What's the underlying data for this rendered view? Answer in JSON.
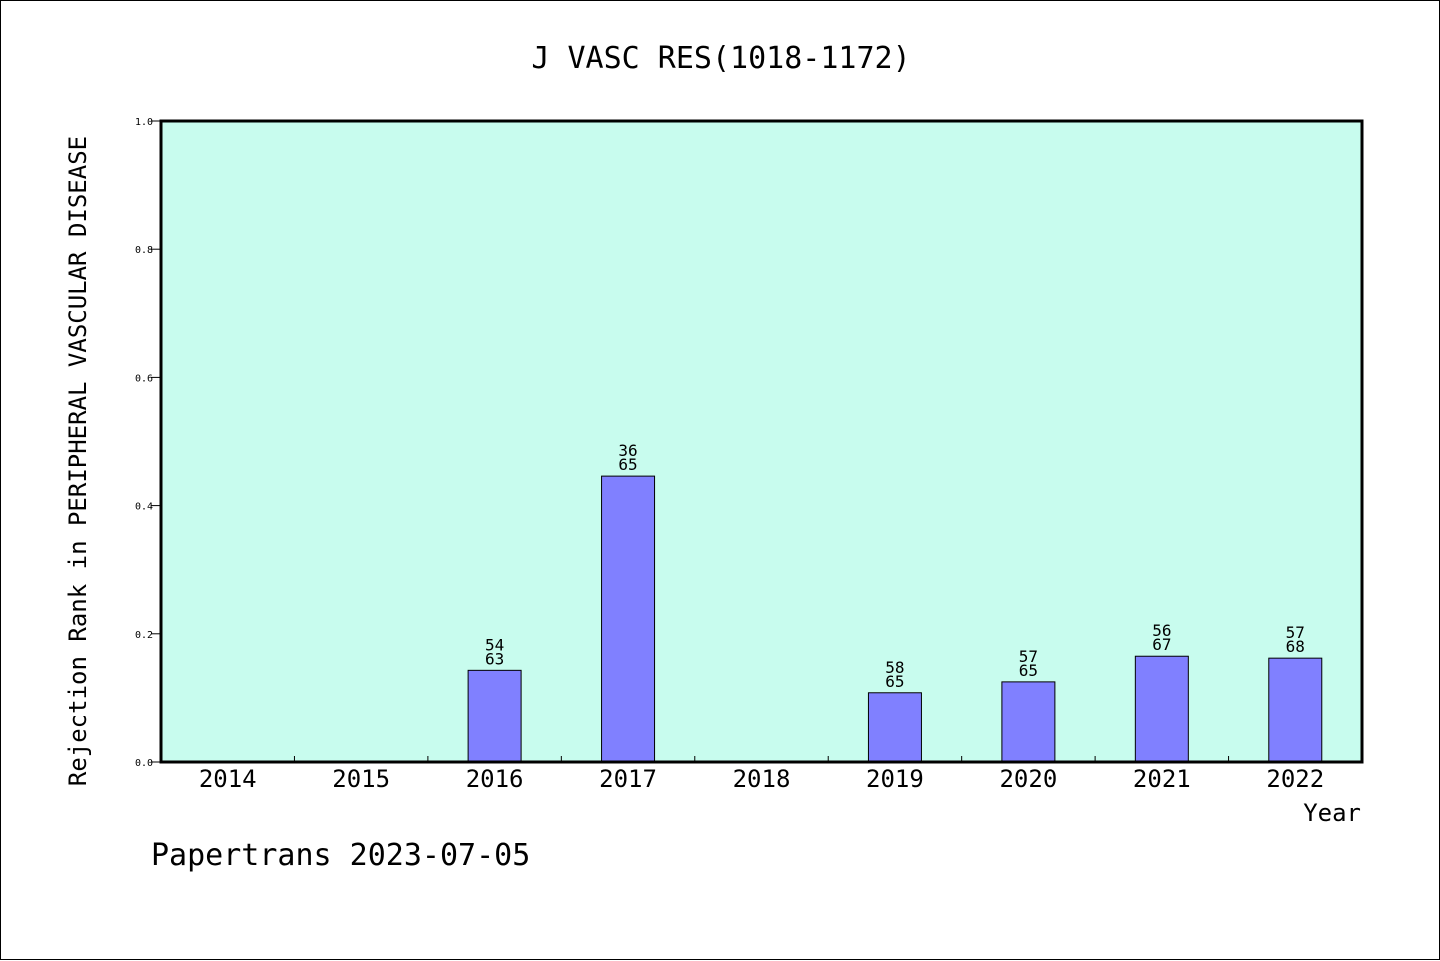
{
  "chart_data": {
    "type": "bar",
    "title": "J VASC RES(1018-1172)",
    "xlabel": "Year",
    "ylabel": "Rejection Rank in PERIPHERAL VASCULAR DISEASE",
    "categories": [
      "2014",
      "2015",
      "2016",
      "2017",
      "2018",
      "2019",
      "2020",
      "2021",
      "2022"
    ],
    "values": [
      null,
      null,
      0.143,
      0.446,
      null,
      0.108,
      0.125,
      0.165,
      0.162
    ],
    "bar_labels": [
      null,
      null,
      [
        "54",
        "63"
      ],
      [
        "36",
        "65"
      ],
      null,
      [
        "58",
        "65"
      ],
      [
        "57",
        "65"
      ],
      [
        "56",
        "67"
      ],
      [
        "57",
        "68"
      ]
    ],
    "ylim": [
      0,
      1.0
    ],
    "yticks": [
      "0.0",
      "0.2",
      "0.4",
      "0.6",
      "0.8",
      "1.0"
    ],
    "grid": false,
    "plot_background": "#c8fcee",
    "bar_color": "#8080ff"
  },
  "footer": {
    "text": "Papertrans 2023-07-05"
  }
}
